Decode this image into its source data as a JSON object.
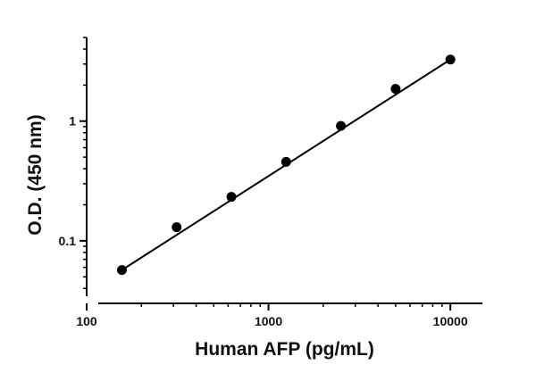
{
  "chart_data": {
    "type": "scatter",
    "title": "",
    "xlabel": "Human AFP (pg/mL)",
    "ylabel": "O.D. (450 nm)",
    "x_scale": "log",
    "y_scale": "log",
    "xlim": [
      100,
      15000
    ],
    "ylim": [
      0.03,
      5
    ],
    "grid": false,
    "legend": "none",
    "x_ticks": [
      100,
      1000,
      10000
    ],
    "x_tick_labels": [
      "100",
      "1000",
      "10000"
    ],
    "y_ticks": [
      0.1,
      1
    ],
    "y_tick_labels": [
      "0.1",
      "1"
    ],
    "series": [
      {
        "x": [
          156.25,
          312.5,
          625,
          1250,
          2500,
          5000,
          10000
        ],
        "y": [
          0.057,
          0.13,
          0.233,
          0.457,
          0.912,
          1.86,
          3.27
        ]
      }
    ],
    "fit_line": {
      "x": [
        156.25,
        10000
      ],
      "y": [
        0.057,
        3.27
      ]
    },
    "colors": {
      "points": "#000000",
      "line": "#000000",
      "axes": "#000000"
    }
  }
}
